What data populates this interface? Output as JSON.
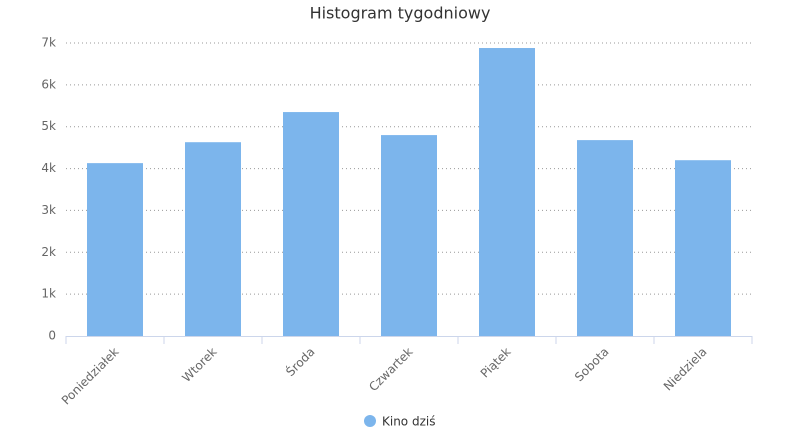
{
  "chart_data": {
    "type": "bar",
    "title": "Histogram tygodniowy",
    "categories": [
      "Poniedziałek",
      "Wtorek",
      "Środa",
      "Czwartek",
      "Piątek",
      "Sobota",
      "Niedziela"
    ],
    "series": [
      {
        "name": "Kino dziś",
        "color": "#7cb5ec",
        "values": [
          4130,
          4630,
          5350,
          4800,
          6880,
          4680,
          4200
        ]
      }
    ],
    "ylim": [
      0,
      7000
    ],
    "yticks": [
      0,
      {
        "value": 1000,
        "label": "1k"
      },
      {
        "value": 2000,
        "label": "2k"
      },
      {
        "value": 3000,
        "label": "3k"
      },
      {
        "value": 4000,
        "label": "4k"
      },
      {
        "value": 5000,
        "label": "5k"
      },
      {
        "value": 6000,
        "label": "6k"
      },
      {
        "value": 7000,
        "label": "7k"
      }
    ],
    "grid": true,
    "legend": "bottom"
  }
}
